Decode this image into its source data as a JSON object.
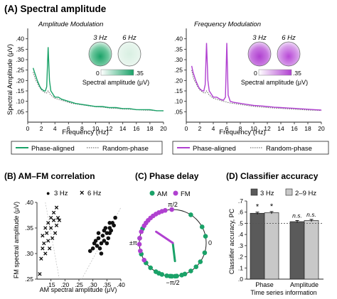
{
  "panel_a": {
    "label": "(A) Spectral amplitude",
    "xlabel": "Frequency (Hz)",
    "ylabel": "Spectral Amplitude (μV)",
    "legend": {
      "solid": "Phase-aligned",
      "dotted": "Random-phase"
    },
    "colorbar": {
      "min_label": "0",
      "max_label": ".35",
      "label": "Spectral amplitude (μV)"
    },
    "topo_labels": [
      "3 Hz",
      "6 Hz"
    ],
    "subpanels": [
      "Amplitude Modulation",
      "Frequency Modulation"
    ]
  },
  "panel_b": {
    "label": "(B) AM–FM correlation",
    "legend": [
      "3 Hz",
      "6 Hz"
    ],
    "marker_dot": "●",
    "marker_x": "×"
  },
  "panel_c": {
    "label": "(C) Phase delay",
    "legend": [
      "AM",
      "FM"
    ],
    "tick_top": "π/2",
    "tick_left": "±π",
    "tick_right": "0",
    "tick_bottom": "−π/2"
  },
  "panel_d": {
    "label": "(D) Classifier accuracy",
    "legend": [
      "3 Hz",
      "2–9 Hz"
    ]
  },
  "colors": {
    "am": "#1aa268",
    "fm": "#b040d0",
    "dark_bar": "#5a5a5a",
    "light_bar": "#c8c8c8"
  },
  "chart_data": [
    {
      "type": "line",
      "title": "Amplitude Modulation",
      "xlabel": "Frequency (Hz)",
      "ylabel": "Spectral Amplitude (μV)",
      "xlim": [
        0,
        20
      ],
      "ylim": [
        0,
        0.45
      ],
      "xticks": [
        "0",
        "2",
        "4",
        "6",
        "8",
        "10",
        "12",
        "14",
        "16",
        "18",
        "20"
      ],
      "yticks": [
        ".05",
        ".10",
        ".15",
        ".20",
        ".25",
        ".30",
        ".35",
        ".40"
      ],
      "x": [
        0.8,
        1,
        1.2,
        1.4,
        1.6,
        1.8,
        2,
        2.2,
        2.4,
        2.6,
        2.8,
        3,
        3.2,
        3.4,
        3.6,
        3.8,
        4,
        4.5,
        5,
        5.5,
        6,
        6.5,
        7,
        8,
        9,
        10,
        11,
        12,
        13,
        14,
        15,
        16,
        17,
        18,
        19,
        20
      ],
      "series": [
        {
          "name": "Phase-aligned",
          "values": [
            0.26,
            0.24,
            0.22,
            0.2,
            0.185,
            0.17,
            0.16,
            0.155,
            0.15,
            0.15,
            0.17,
            0.36,
            0.2,
            0.15,
            0.14,
            0.13,
            0.12,
            0.12,
            0.11,
            0.105,
            0.1,
            0.095,
            0.09,
            0.085,
            0.08,
            0.075,
            0.075,
            0.07,
            0.07,
            0.065,
            0.065,
            0.06,
            0.06,
            0.06,
            0.055,
            0.055
          ]
        },
        {
          "name": "Random-phase",
          "values": [
            0.24,
            0.22,
            0.2,
            0.19,
            0.175,
            0.165,
            0.155,
            0.15,
            0.145,
            0.14,
            0.14,
            0.15,
            0.14,
            0.13,
            0.125,
            0.12,
            0.115,
            0.11,
            0.105,
            0.1,
            0.095,
            0.09,
            0.088,
            0.083,
            0.078,
            0.074,
            0.072,
            0.068,
            0.066,
            0.063,
            0.062,
            0.06,
            0.058,
            0.057,
            0.055,
            0.054
          ]
        }
      ]
    },
    {
      "type": "line",
      "title": "Frequency Modulation",
      "xlabel": "Frequency (Hz)",
      "ylabel": "Spectral Amplitude (μV)",
      "xlim": [
        0,
        20
      ],
      "ylim": [
        0,
        0.45
      ],
      "xticks": [
        "0",
        "2",
        "4",
        "6",
        "8",
        "10",
        "12",
        "14",
        "16",
        "18",
        "20"
      ],
      "yticks": [
        ".05",
        ".10",
        ".15",
        ".20",
        ".25",
        ".30",
        ".35",
        ".40"
      ],
      "x": [
        0.8,
        1,
        1.2,
        1.4,
        1.6,
        1.8,
        2,
        2.2,
        2.4,
        2.6,
        2.8,
        3,
        3.2,
        3.4,
        3.6,
        3.8,
        4,
        4.5,
        5,
        5.5,
        5.8,
        6,
        6.2,
        6.5,
        7,
        8,
        9,
        10,
        11,
        12,
        13,
        14,
        15,
        16,
        17,
        18,
        19,
        20
      ],
      "series": [
        {
          "name": "Phase-aligned",
          "values": [
            0.27,
            0.24,
            0.22,
            0.2,
            0.185,
            0.17,
            0.16,
            0.155,
            0.15,
            0.15,
            0.18,
            0.38,
            0.2,
            0.15,
            0.14,
            0.13,
            0.12,
            0.12,
            0.11,
            0.105,
            0.12,
            0.38,
            0.13,
            0.1,
            0.095,
            0.09,
            0.085,
            0.08,
            0.078,
            0.075,
            0.072,
            0.07,
            0.068,
            0.066,
            0.064,
            0.062,
            0.06,
            0.058
          ]
        },
        {
          "name": "Random-phase",
          "values": [
            0.25,
            0.22,
            0.2,
            0.19,
            0.175,
            0.165,
            0.155,
            0.15,
            0.145,
            0.14,
            0.14,
            0.15,
            0.14,
            0.13,
            0.125,
            0.12,
            0.115,
            0.11,
            0.105,
            0.1,
            0.098,
            0.096,
            0.094,
            0.092,
            0.09,
            0.085,
            0.08,
            0.076,
            0.073,
            0.07,
            0.068,
            0.066,
            0.064,
            0.062,
            0.06,
            0.058,
            0.057,
            0.056
          ]
        }
      ]
    },
    {
      "type": "scatter",
      "title": "(B) AM–FM correlation",
      "xlabel": "AM spectral amplitude (μV)",
      "ylabel": "FM spectral amplitude (μV)",
      "xlim": [
        0.1,
        0.4
      ],
      "ylim": [
        0.25,
        0.4
      ],
      "xticks": [
        ".15",
        ".20",
        ".25",
        ".30",
        ".35",
        ".40"
      ],
      "yticks": [
        ".25",
        ".30",
        ".35",
        ".40"
      ],
      "series": [
        {
          "name": "3 Hz",
          "x": [
            0.29,
            0.3,
            0.305,
            0.31,
            0.315,
            0.32,
            0.32,
            0.325,
            0.33,
            0.335,
            0.34,
            0.34,
            0.345,
            0.35,
            0.355,
            0.36,
            0.36,
            0.365,
            0.37,
            0.375,
            0.38,
            0.36,
            0.35,
            0.33
          ],
          "y": [
            0.305,
            0.31,
            0.32,
            0.325,
            0.315,
            0.33,
            0.34,
            0.31,
            0.32,
            0.335,
            0.345,
            0.325,
            0.35,
            0.34,
            0.33,
            0.35,
            0.36,
            0.345,
            0.36,
            0.355,
            0.37,
            0.34,
            0.32,
            0.3
          ]
        },
        {
          "name": "6 Hz",
          "x": [
            0.11,
            0.115,
            0.12,
            0.12,
            0.125,
            0.13,
            0.13,
            0.135,
            0.14,
            0.14,
            0.145,
            0.15,
            0.15,
            0.155,
            0.16,
            0.16,
            0.165,
            0.17,
            0.17,
            0.175,
            0.18
          ],
          "y": [
            0.26,
            0.29,
            0.31,
            0.335,
            0.32,
            0.35,
            0.3,
            0.34,
            0.325,
            0.36,
            0.31,
            0.35,
            0.37,
            0.33,
            0.365,
            0.38,
            0.34,
            0.355,
            0.39,
            0.37,
            0.365
          ]
        }
      ]
    },
    {
      "type": "scatter",
      "title": "(C) Phase delay",
      "angle_unit": "rad",
      "series": [
        {
          "name": "AM",
          "angles": [
            -1.45,
            -1.6,
            -1.75,
            -1.9,
            -2.1,
            -2.3,
            -2.5,
            -2.8,
            3.0,
            2.7,
            -1.3,
            -1.2,
            -1.0,
            -0.8,
            -0.6,
            -0.3,
            0.2,
            0.5,
            1.0,
            -2.0,
            -1.5,
            -1.65
          ],
          "mean_angle": -1.45,
          "mean_length": 0.55
        },
        {
          "name": "FM",
          "angles": [
            1.6,
            1.8,
            2.0,
            2.2,
            2.4,
            2.6,
            2.8,
            3.0,
            -3.1,
            -2.9,
            1.9,
            2.1,
            2.3,
            -2.6,
            2.5
          ],
          "mean_angle": 2.55,
          "mean_length": 0.6
        }
      ]
    },
    {
      "type": "bar",
      "title": "(D) Classifier accuracy",
      "xlabel": "Time series information",
      "ylabel": "Classifier accuracy, PC",
      "categories": [
        "Phase",
        "Amplitude"
      ],
      "ylim": [
        0,
        0.7
      ],
      "yticks": [
        ".0",
        ".1",
        ".2",
        ".3",
        ".4",
        ".5",
        ".6",
        ".7"
      ],
      "chance_level": 0.5,
      "series": [
        {
          "name": "3 Hz",
          "values": [
            0.59,
            0.515
          ],
          "errors": [
            0.01,
            0.01
          ]
        },
        {
          "name": "2–9 Hz",
          "values": [
            0.595,
            0.525
          ],
          "errors": [
            0.01,
            0.01
          ]
        }
      ],
      "annotations": [
        "*",
        "*",
        "n.s.",
        "n.s."
      ]
    }
  ]
}
